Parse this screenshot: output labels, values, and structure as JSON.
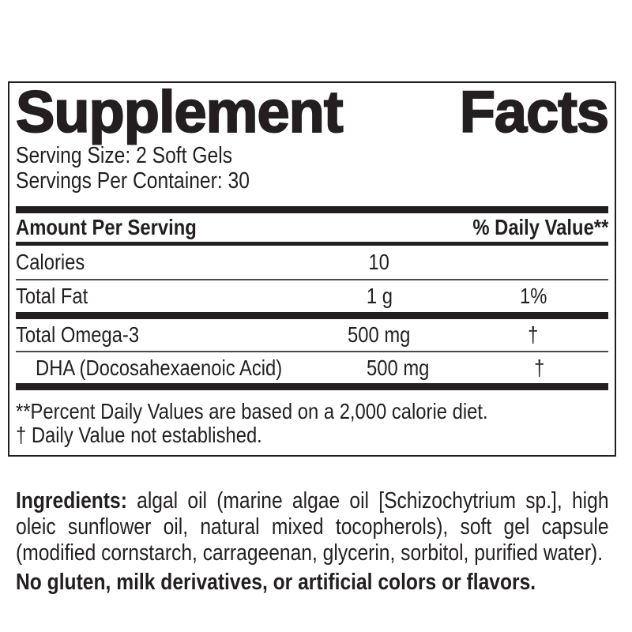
{
  "colors": {
    "text": "#231f20",
    "border": "#231f20",
    "hairline": "#4a4a4a",
    "background": "#ffffff"
  },
  "label": {
    "title": {
      "word1": "Supplement",
      "word2": "Facts"
    },
    "serving_size": "Serving Size: 2 Soft Gels",
    "servings_per_container": "Servings Per Container: 30",
    "header": {
      "amount_per_serving": "Amount Per Serving",
      "daily_value": "% Daily Value**"
    },
    "rows": [
      {
        "name": "Calories",
        "amount": "10",
        "dv": ""
      },
      {
        "name": "Total Fat",
        "amount": "1 g",
        "dv": "1%"
      },
      {
        "name": "Total Omega-3",
        "amount": "500 mg",
        "dv": "†"
      },
      {
        "name": "DHA (Docosahexaenoic Acid)",
        "amount": "500 mg",
        "dv": "†"
      }
    ],
    "footnotes": [
      "**Percent Daily Values are based on a 2,000 calorie diet.",
      "† Daily Value not established."
    ]
  },
  "ingredients": {
    "label": "Ingredients:",
    "text": " algal oil (marine algae oil [Schizochytrium sp.], high oleic sunflower oil, natural mixed tocopherols), soft gel capsule (modified cornstarch, carrageenan, glycerin, sorbitol, purified water)."
  },
  "allergen_statement": "No gluten, milk derivatives, or artificial colors or flavors."
}
